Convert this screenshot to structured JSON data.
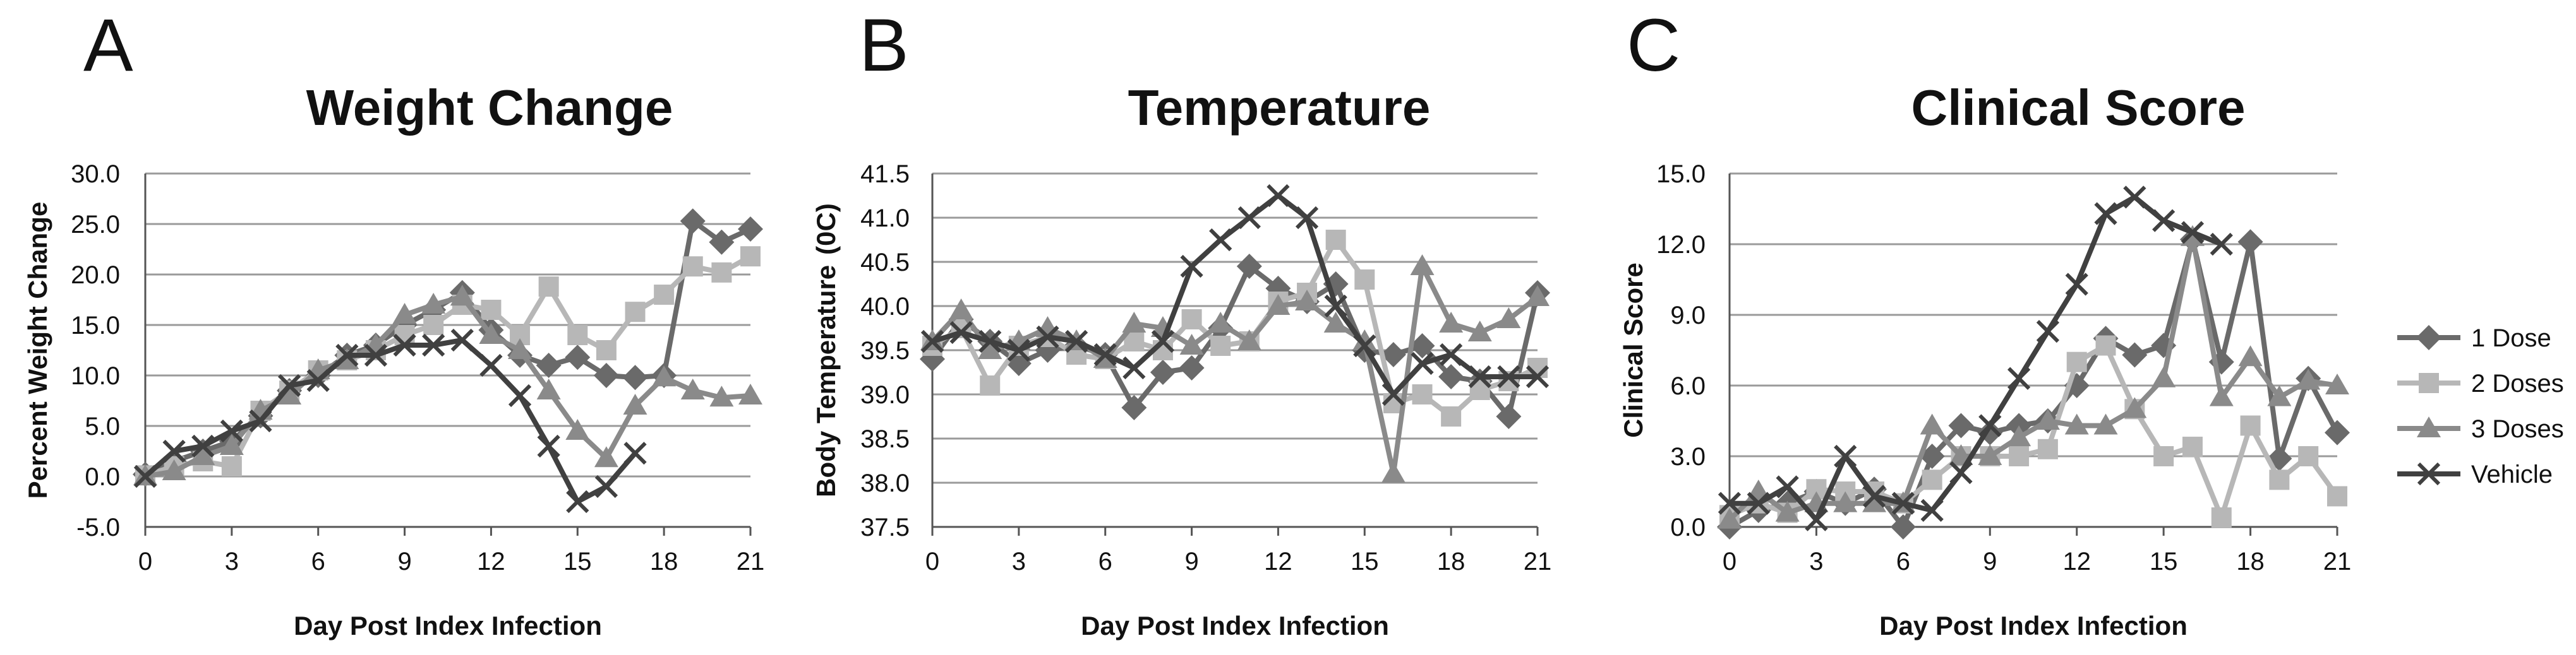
{
  "colors": {
    "dose1": "#6a6a6a",
    "dose2": "#b7b7b7",
    "dose3": "#8a8a8a",
    "vehicle": "#404040",
    "grid": "#9a9a9a",
    "axis": "#555555"
  },
  "legend": {
    "entries": [
      {
        "name": "1 Dose",
        "marker": "diamond"
      },
      {
        "name": "2 Doses",
        "marker": "square"
      },
      {
        "name": "3 Doses",
        "marker": "triangle"
      },
      {
        "name": "Vehicle",
        "marker": "x"
      }
    ]
  },
  "chart_data": [
    {
      "panel": "A",
      "type": "line",
      "title": "Weight Change",
      "xlabel": "Day Post Index Infection",
      "ylabel": "Percent Weight Change",
      "ylim": [
        -5,
        30
      ],
      "yticks": [
        -5,
        0,
        5,
        10,
        15,
        20,
        25,
        30
      ],
      "ytick_labels": [
        "-5.0",
        "0.0",
        "5.0",
        "10.0",
        "15.0",
        "20.0",
        "25.0",
        "30.0"
      ],
      "xlim": [
        0,
        21
      ],
      "xticks": [
        0,
        3,
        6,
        9,
        12,
        15,
        18,
        21
      ],
      "xtick_labels": [
        "0",
        "3",
        "6",
        "9",
        "12",
        "15",
        "18",
        "21"
      ],
      "series": [
        {
          "name": "1 Dose",
          "color": "#6a6a6a",
          "marker": "diamond",
          "x": [
            0,
            1,
            2,
            3,
            4,
            5,
            6,
            7,
            8,
            9,
            10,
            11,
            12,
            13,
            14,
            15,
            16,
            17,
            18,
            19,
            20,
            21
          ],
          "y": [
            0.2,
            1.5,
            2.5,
            3.5,
            6,
            8.5,
            10,
            12,
            13,
            15,
            16.5,
            18.2,
            14.5,
            12,
            11,
            11.8,
            10,
            9.8,
            10,
            25.3,
            23.2,
            24.5
          ]
        },
        {
          "name": "2 Doses",
          "color": "#b7b7b7",
          "marker": "square",
          "x": [
            0,
            1,
            2,
            3,
            4,
            5,
            6,
            7,
            8,
            9,
            10,
            11,
            12,
            13,
            14,
            15,
            16,
            17,
            18,
            19,
            20,
            21
          ],
          "y": [
            0.1,
            1,
            1.5,
            1,
            6.5,
            8.5,
            10.5,
            11.5,
            12.5,
            14,
            15,
            17,
            16.5,
            14,
            18.8,
            14,
            12.5,
            16.3,
            18,
            20.8,
            20.2,
            21.8
          ]
        },
        {
          "name": "3 Doses",
          "color": "#8a8a8a",
          "marker": "triangle",
          "x": [
            0,
            1,
            2,
            3,
            4,
            5,
            6,
            7,
            8,
            9,
            10,
            11,
            12,
            13,
            14,
            15,
            16,
            17,
            18,
            19,
            20,
            21
          ],
          "y": [
            0,
            0.5,
            2,
            3,
            6.5,
            8,
            10.5,
            11.5,
            13,
            16,
            17,
            17.8,
            14,
            12.5,
            8.5,
            4.5,
            1.8,
            7,
            9.8,
            8.5,
            7.8,
            8
          ]
        },
        {
          "name": "Vehicle",
          "color": "#404040",
          "marker": "x",
          "x": [
            0,
            1,
            2,
            3,
            4,
            5,
            6,
            7,
            8,
            9,
            10,
            11,
            12,
            13,
            14,
            15,
            16,
            17
          ],
          "y": [
            0,
            2.5,
            3,
            4.5,
            5.5,
            9,
            9.5,
            12,
            12,
            13,
            13,
            13.5,
            11,
            8,
            3,
            -2.5,
            -1,
            2.3
          ]
        }
      ]
    },
    {
      "panel": "B",
      "type": "line",
      "title": "Temperature",
      "xlabel": "Day Post Index Infection",
      "ylabel": "Body Temperature",
      "ylabel_unit": "(0C)",
      "ylim": [
        37.5,
        41.5
      ],
      "yticks": [
        37.5,
        38,
        38.5,
        39,
        39.5,
        40,
        40.5,
        41,
        41.5
      ],
      "ytick_labels": [
        "37.5",
        "38.0",
        "38.5",
        "39.0",
        "39.5",
        "40.0",
        "40.5",
        "41.0",
        "41.5"
      ],
      "xlim": [
        0,
        21
      ],
      "xticks": [
        0,
        3,
        6,
        9,
        12,
        15,
        18,
        21
      ],
      "xtick_labels": [
        "0",
        "3",
        "6",
        "9",
        "12",
        "15",
        "18",
        "21"
      ],
      "series": [
        {
          "name": "1 Dose",
          "color": "#6a6a6a",
          "marker": "diamond",
          "x": [
            0,
            1,
            2,
            3,
            4,
            5,
            6,
            7,
            8,
            9,
            10,
            11,
            12,
            13,
            14,
            15,
            16,
            17,
            18,
            19,
            20,
            21
          ],
          "y": [
            39.4,
            39.85,
            39.6,
            39.35,
            39.5,
            39.55,
            39.45,
            38.85,
            39.25,
            39.3,
            39.75,
            40.45,
            40.2,
            40.05,
            40.25,
            39.5,
            39.45,
            39.55,
            39.2,
            39.15,
            38.75,
            40.15
          ]
        },
        {
          "name": "2 Doses",
          "color": "#b7b7b7",
          "marker": "square",
          "x": [
            0,
            1,
            2,
            3,
            4,
            5,
            6,
            7,
            8,
            9,
            10,
            11,
            12,
            13,
            14,
            15,
            16,
            17,
            18,
            19,
            20,
            21
          ],
          "y": [
            39.55,
            39.75,
            39.1,
            39.55,
            39.65,
            39.45,
            39.4,
            39.6,
            39.5,
            39.85,
            39.55,
            39.6,
            40.05,
            40.15,
            40.75,
            40.3,
            38.9,
            39.0,
            38.75,
            39.05,
            39.15,
            39.3
          ]
        },
        {
          "name": "3 Doses",
          "color": "#8a8a8a",
          "marker": "triangle",
          "x": [
            0,
            1,
            2,
            3,
            4,
            5,
            6,
            7,
            8,
            9,
            10,
            11,
            12,
            13,
            14,
            15,
            16,
            17,
            18,
            19,
            20,
            21
          ],
          "y": [
            39.6,
            39.95,
            39.5,
            39.6,
            39.75,
            39.6,
            39.4,
            39.8,
            39.75,
            39.55,
            39.8,
            39.6,
            40.0,
            40.05,
            39.8,
            39.6,
            38.1,
            40.45,
            39.8,
            39.7,
            39.85,
            40.1
          ]
        },
        {
          "name": "Vehicle",
          "color": "#404040",
          "marker": "x",
          "x": [
            0,
            1,
            2,
            3,
            4,
            5,
            6,
            7,
            8,
            9,
            10,
            11,
            12,
            13,
            14,
            15,
            16,
            17,
            18,
            19,
            20,
            21
          ],
          "y": [
            39.6,
            39.7,
            39.6,
            39.5,
            39.65,
            39.6,
            39.45,
            39.3,
            39.6,
            40.45,
            40.75,
            41.0,
            41.25,
            41.0,
            40.0,
            39.55,
            39.0,
            39.35,
            39.45,
            39.2,
            39.2,
            39.2
          ]
        }
      ]
    },
    {
      "panel": "C",
      "type": "line",
      "title": "Clinical Score",
      "xlabel": "Day Post Index Infection",
      "ylabel": "Clinical Score",
      "ylim": [
        0,
        15
      ],
      "yticks": [
        0,
        3,
        6,
        9,
        12,
        15
      ],
      "ytick_labels": [
        "0.0",
        "3.0",
        "6.0",
        "9.0",
        "12.0",
        "15.0"
      ],
      "xlim": [
        0,
        21
      ],
      "xticks": [
        0,
        3,
        6,
        9,
        12,
        15,
        18,
        21
      ],
      "xtick_labels": [
        "0",
        "3",
        "6",
        "9",
        "12",
        "15",
        "18",
        "21"
      ],
      "series": [
        {
          "name": "1 Dose",
          "color": "#6a6a6a",
          "marker": "diamond",
          "x": [
            0,
            1,
            2,
            3,
            4,
            5,
            6,
            7,
            8,
            9,
            10,
            11,
            12,
            13,
            14,
            15,
            16,
            17,
            18,
            19,
            20,
            21
          ],
          "y": [
            0,
            0.7,
            1,
            1.5,
            1,
            1.6,
            0,
            3,
            4.3,
            4,
            4.3,
            4.5,
            6,
            8,
            7.3,
            7.7,
            12.2,
            7,
            12.1,
            2.9,
            6.3,
            4
          ]
        },
        {
          "name": "2 Doses",
          "color": "#b7b7b7",
          "marker": "square",
          "x": [
            0,
            1,
            2,
            3,
            4,
            5,
            6,
            7,
            8,
            9,
            10,
            11,
            12,
            13,
            14,
            15,
            16,
            17,
            18,
            19,
            20,
            21
          ],
          "y": [
            0.5,
            1,
            0.6,
            1.6,
            1.5,
            1.5,
            1,
            2,
            3,
            3,
            3,
            3.3,
            7,
            7.7,
            5,
            3,
            3.4,
            0.4,
            4.3,
            2,
            3,
            1.3
          ]
        },
        {
          "name": "3 Doses",
          "color": "#8a8a8a",
          "marker": "triangle",
          "x": [
            0,
            1,
            2,
            3,
            4,
            5,
            6,
            7,
            8,
            9,
            10,
            11,
            12,
            13,
            14,
            15,
            16,
            17,
            18,
            19,
            20,
            21
          ],
          "y": [
            0.3,
            1.5,
            0.6,
            1,
            1,
            1,
            1,
            4.3,
            3,
            3,
            3.8,
            4.5,
            4.3,
            4.3,
            5,
            6.3,
            12.3,
            5.5,
            7.2,
            5.5,
            6.2,
            6
          ]
        },
        {
          "name": "Vehicle",
          "color": "#404040",
          "marker": "x",
          "x": [
            0,
            1,
            2,
            3,
            4,
            5,
            6,
            7,
            8,
            9,
            10,
            11,
            12,
            13,
            14,
            15,
            16,
            17
          ],
          "y": [
            1,
            1,
            1.7,
            0.3,
            3,
            1.3,
            1,
            0.7,
            2.3,
            4.3,
            6.3,
            8.3,
            10.3,
            13.3,
            14,
            13,
            12.5,
            12
          ]
        }
      ]
    }
  ]
}
